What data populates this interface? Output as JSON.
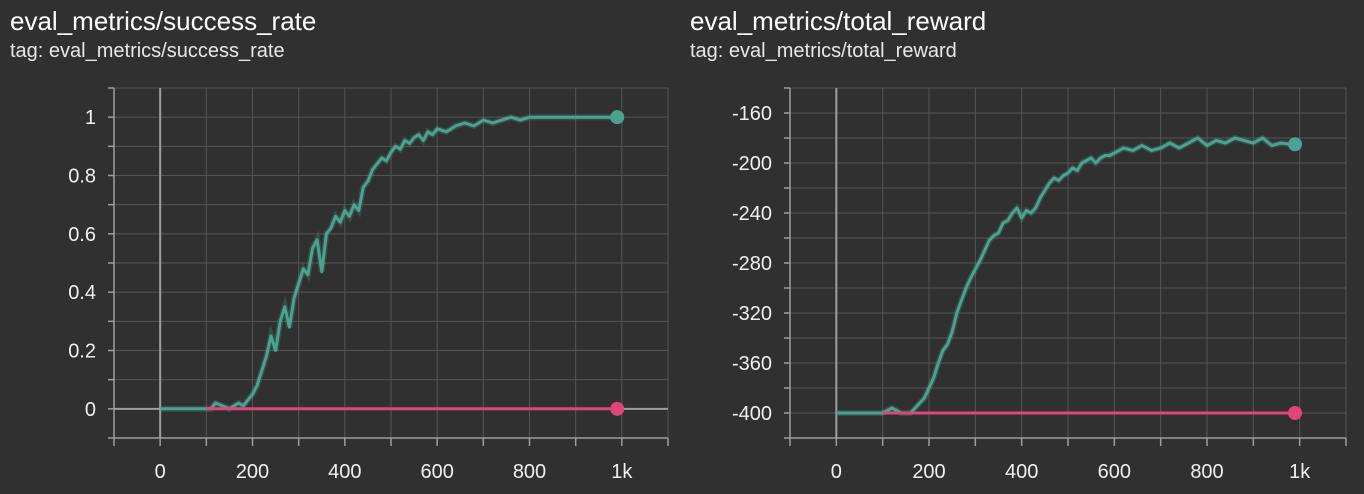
{
  "colors": {
    "background": "#303030",
    "grid": "#555555",
    "axis": "#9e9e9e",
    "series_green": "#4aa38f",
    "series_pink": "#e0457a"
  },
  "charts": [
    {
      "title": "eval_metrics/success_rate",
      "subtitle": "tag: eval_metrics/success_rate"
    },
    {
      "title": "eval_metrics/total_reward",
      "subtitle": "tag: eval_metrics/total_reward"
    }
  ],
  "chart_data": [
    {
      "type": "line",
      "title": "eval_metrics/success_rate",
      "xlim": [
        -100,
        1100
      ],
      "ylim": [
        -0.1,
        1.1
      ],
      "x_ticks": [
        0,
        200,
        400,
        600,
        800,
        1000
      ],
      "x_tick_labels": [
        "0",
        "200",
        "400",
        "600",
        "800",
        "1k"
      ],
      "y_ticks": [
        0,
        0.2,
        0.4,
        0.6,
        0.8,
        1
      ],
      "y_tick_labels": [
        "0",
        "0.2",
        "0.4",
        "0.6",
        "0.8",
        "1"
      ],
      "grid": true,
      "series": [
        {
          "color": "#4aa38f",
          "x": [
            0,
            100,
            110,
            120,
            150,
            170,
            180,
            190,
            200,
            210,
            220,
            230,
            240,
            250,
            260,
            270,
            280,
            290,
            300,
            310,
            320,
            330,
            340,
            350,
            360,
            370,
            380,
            390,
            400,
            410,
            420,
            430,
            440,
            450,
            460,
            470,
            480,
            490,
            500,
            510,
            520,
            530,
            540,
            550,
            560,
            570,
            580,
            590,
            600,
            620,
            640,
            660,
            680,
            700,
            720,
            740,
            760,
            780,
            800,
            850,
            900,
            950,
            990
          ],
          "y": [
            0,
            0,
            0,
            0.02,
            0,
            0.02,
            0.01,
            0.03,
            0.05,
            0.08,
            0.13,
            0.18,
            0.25,
            0.2,
            0.3,
            0.35,
            0.28,
            0.38,
            0.43,
            0.48,
            0.46,
            0.55,
            0.58,
            0.47,
            0.6,
            0.62,
            0.66,
            0.64,
            0.68,
            0.66,
            0.7,
            0.68,
            0.76,
            0.78,
            0.82,
            0.84,
            0.86,
            0.85,
            0.88,
            0.9,
            0.89,
            0.92,
            0.91,
            0.93,
            0.94,
            0.92,
            0.95,
            0.94,
            0.96,
            0.95,
            0.97,
            0.98,
            0.97,
            0.99,
            0.98,
            0.99,
            1.0,
            0.99,
            1.0,
            1.0,
            1.0,
            1.0,
            1.0
          ]
        },
        {
          "color": "#e0457a",
          "x": [
            100,
            990
          ],
          "y": [
            0,
            0
          ]
        }
      ]
    },
    {
      "type": "line",
      "title": "eval_metrics/total_reward",
      "xlim": [
        -100,
        1100
      ],
      "ylim": [
        -420,
        -140
      ],
      "x_ticks": [
        0,
        200,
        400,
        600,
        800,
        1000
      ],
      "x_tick_labels": [
        "0",
        "200",
        "400",
        "600",
        "800",
        "1k"
      ],
      "y_ticks": [
        -400,
        -360,
        -320,
        -280,
        -240,
        -200,
        -160
      ],
      "y_tick_labels": [
        "-400",
        "-360",
        "-320",
        "-280",
        "-240",
        "-200",
        "-160"
      ],
      "grid": true,
      "series": [
        {
          "color": "#4aa38f",
          "x": [
            0,
            100,
            110,
            120,
            140,
            160,
            170,
            180,
            190,
            200,
            210,
            220,
            230,
            240,
            250,
            260,
            270,
            280,
            290,
            300,
            310,
            320,
            330,
            340,
            350,
            360,
            370,
            380,
            390,
            400,
            410,
            420,
            430,
            440,
            450,
            460,
            470,
            480,
            490,
            500,
            510,
            520,
            530,
            540,
            550,
            560,
            570,
            580,
            590,
            600,
            620,
            640,
            660,
            680,
            700,
            720,
            740,
            760,
            780,
            800,
            820,
            840,
            860,
            880,
            900,
            920,
            940,
            960,
            980,
            990
          ],
          "y": [
            -400,
            -400,
            -398,
            -396,
            -400,
            -400,
            -396,
            -392,
            -388,
            -380,
            -372,
            -360,
            -350,
            -345,
            -335,
            -320,
            -310,
            -300,
            -292,
            -285,
            -278,
            -270,
            -262,
            -258,
            -256,
            -248,
            -246,
            -240,
            -236,
            -244,
            -238,
            -240,
            -236,
            -228,
            -222,
            -216,
            -212,
            -214,
            -210,
            -208,
            -204,
            -206,
            -200,
            -198,
            -196,
            -200,
            -196,
            -194,
            -194,
            -192,
            -188,
            -190,
            -186,
            -190,
            -188,
            -184,
            -188,
            -184,
            -180,
            -186,
            -182,
            -184,
            -180,
            -182,
            -184,
            -180,
            -186,
            -184,
            -185,
            -185
          ]
        },
        {
          "color": "#e0457a",
          "x": [
            100,
            990
          ],
          "y": [
            -400,
            -400
          ]
        }
      ]
    }
  ]
}
